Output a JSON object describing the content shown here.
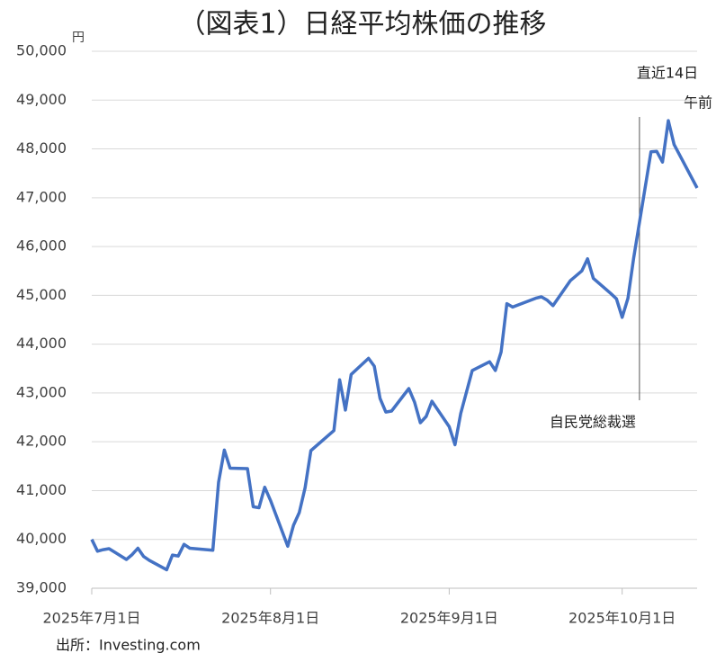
{
  "chart_data": {
    "type": "line",
    "title": "（図表1）日経平均株価の推移",
    "y_label": "円",
    "source": "出所：Investing.com",
    "annotations": [
      {
        "text": "直近14日"
      },
      {
        "text": "午前"
      },
      {
        "text": "自民党総裁選",
        "x": "2025-10-04"
      }
    ],
    "x": [
      "2025-07-01",
      "2025-07-02",
      "2025-07-03",
      "2025-07-04",
      "2025-07-07",
      "2025-07-08",
      "2025-07-09",
      "2025-07-10",
      "2025-07-11",
      "2025-07-14",
      "2025-07-15",
      "2025-07-16",
      "2025-07-17",
      "2025-07-18",
      "2025-07-22",
      "2025-07-23",
      "2025-07-24",
      "2025-07-25",
      "2025-07-28",
      "2025-07-29",
      "2025-07-30",
      "2025-07-31",
      "2025-08-01",
      "2025-08-04",
      "2025-08-05",
      "2025-08-06",
      "2025-08-07",
      "2025-08-08",
      "2025-08-12",
      "2025-08-13",
      "2025-08-14",
      "2025-08-15",
      "2025-08-18",
      "2025-08-19",
      "2025-08-20",
      "2025-08-21",
      "2025-08-22",
      "2025-08-25",
      "2025-08-26",
      "2025-08-27",
      "2025-08-28",
      "2025-08-29",
      "2025-09-01",
      "2025-09-02",
      "2025-09-03",
      "2025-09-04",
      "2025-09-05",
      "2025-09-08",
      "2025-09-09",
      "2025-09-10",
      "2025-09-11",
      "2025-09-12",
      "2025-09-16",
      "2025-09-17",
      "2025-09-18",
      "2025-09-19",
      "2025-09-22",
      "2025-09-24",
      "2025-09-25",
      "2025-09-26",
      "2025-09-29",
      "2025-09-30",
      "2025-10-01",
      "2025-10-02",
      "2025-10-03",
      "2025-10-06",
      "2025-10-07",
      "2025-10-08",
      "2025-10-09",
      "2025-10-10",
      "2025-10-14"
    ],
    "series": [
      {
        "name": "日経平均株価",
        "color": "#4472c4",
        "values": [
          40000,
          39760,
          39790,
          39810,
          39590,
          39690,
          39820,
          39650,
          39570,
          39380,
          39680,
          39660,
          39900,
          39820,
          39780,
          41170,
          41830,
          41460,
          41450,
          40670,
          40650,
          41070,
          40800,
          39860,
          40290,
          40550,
          41060,
          41820,
          42230,
          43270,
          42650,
          43380,
          43710,
          43550,
          42890,
          42610,
          42630,
          43090,
          42810,
          42390,
          42520,
          42830,
          42310,
          41940,
          42580,
          43020,
          43460,
          43640,
          43460,
          43840,
          44830,
          44760,
          44940,
          44970,
          44900,
          44790,
          45300,
          45500,
          45750,
          45350,
          45040,
          44930,
          44550,
          44940,
          45770,
          47940,
          47950,
          47730,
          48580,
          48090,
          47200
        ]
      }
    ],
    "xlim": [
      "2025-07-01",
      "2025-10-14"
    ],
    "xticks": [
      {
        "value": "2025-07-01",
        "label": "2025年7月1日"
      },
      {
        "value": "2025-08-01",
        "label": "2025年8月1日"
      },
      {
        "value": "2025-09-01",
        "label": "2025年9月1日"
      },
      {
        "value": "2025-10-01",
        "label": "2025年10月1日"
      }
    ],
    "ylim": [
      39000,
      50000
    ],
    "yticks": [
      {
        "value": 39000,
        "label": "39,000"
      },
      {
        "value": 40000,
        "label": "40,000"
      },
      {
        "value": 41000,
        "label": "41,000"
      },
      {
        "value": 42000,
        "label": "42,000"
      },
      {
        "value": 43000,
        "label": "43,000"
      },
      {
        "value": 44000,
        "label": "44,000"
      },
      {
        "value": 45000,
        "label": "45,000"
      },
      {
        "value": 46000,
        "label": "46,000"
      },
      {
        "value": 47000,
        "label": "47,000"
      },
      {
        "value": 48000,
        "label": "48,000"
      },
      {
        "value": 49000,
        "label": "49,000"
      },
      {
        "value": 50000,
        "label": "50,000"
      }
    ],
    "grid": true
  }
}
